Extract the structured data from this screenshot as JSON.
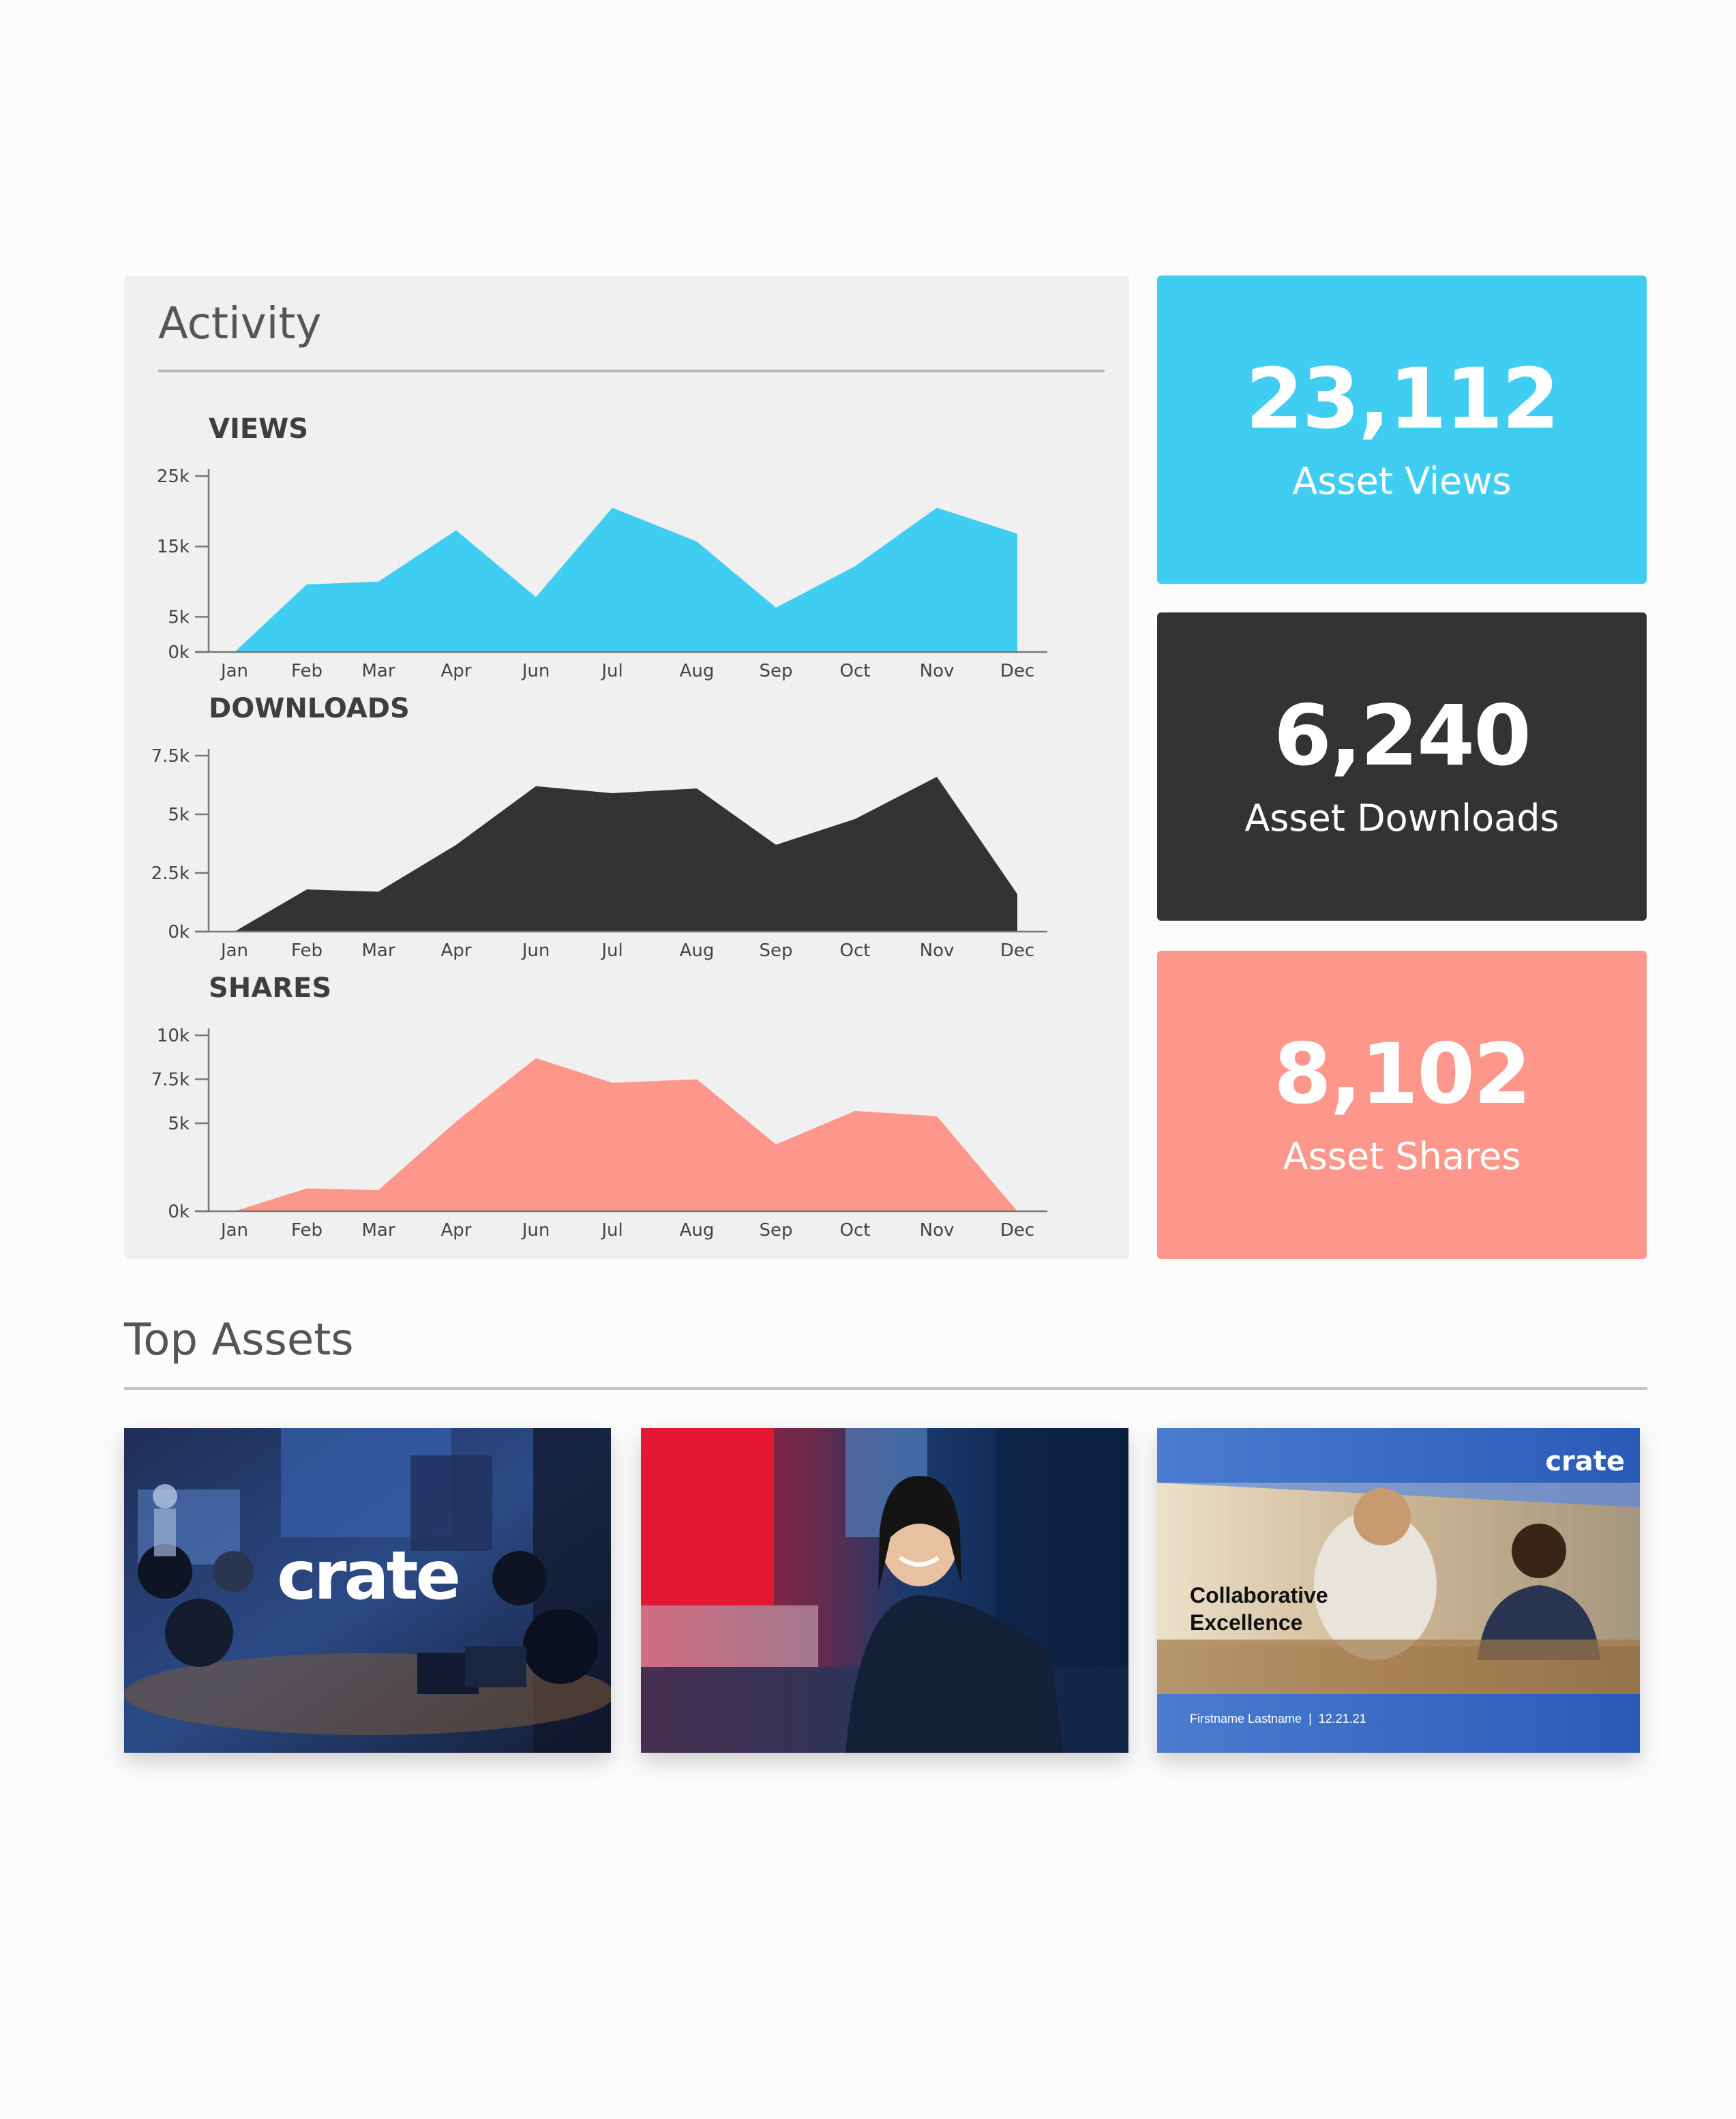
{
  "activity": {
    "title": "Activity",
    "months": [
      "Jan",
      "Feb",
      "Mar",
      "Apr",
      "Jun",
      "Jul",
      "Aug",
      "Sep",
      "Oct",
      "Nov",
      "Dec"
    ]
  },
  "chart_data": [
    {
      "type": "area",
      "title": "VIEWS",
      "categories": [
        "Jan",
        "Feb",
        "Mar",
        "Apr",
        "Jun",
        "Jul",
        "Aug",
        "Sep",
        "Oct",
        "Nov",
        "Dec"
      ],
      "values": [
        0,
        9600,
        10000,
        17300,
        7800,
        20500,
        15700,
        6300,
        12200,
        20500,
        16800
      ],
      "yticks": [
        0,
        5000,
        15000,
        25000
      ],
      "ytick_labels": [
        "0k",
        "5k",
        "15k",
        "25k"
      ],
      "ylim": [
        0,
        25000
      ],
      "color": "#3fcef2"
    },
    {
      "type": "area",
      "title": "DOWNLOADS",
      "categories": [
        "Jan",
        "Feb",
        "Mar",
        "Apr",
        "Jun",
        "Jul",
        "Aug",
        "Sep",
        "Oct",
        "Nov",
        "Dec"
      ],
      "values": [
        0,
        1800,
        1700,
        3700,
        6200,
        5900,
        6100,
        3700,
        4800,
        6600,
        1600
      ],
      "yticks": [
        0,
        2500,
        5000,
        7500
      ],
      "ytick_labels": [
        "0k",
        "2.5k",
        "5k",
        "7.5k"
      ],
      "ylim": [
        0,
        7500
      ],
      "color": "#333333"
    },
    {
      "type": "area",
      "title": "SHARES",
      "categories": [
        "Jan",
        "Feb",
        "Mar",
        "Apr",
        "Jun",
        "Jul",
        "Aug",
        "Sep",
        "Oct",
        "Nov",
        "Dec"
      ],
      "values": [
        0,
        1300,
        1200,
        5100,
        8700,
        7300,
        7500,
        3800,
        5700,
        5400,
        0
      ],
      "yticks": [
        0,
        5000,
        7500,
        10000
      ],
      "ytick_labels": [
        "0k",
        "5k",
        "7.5k",
        "10k"
      ],
      "ylim": [
        0,
        10000
      ],
      "color": "#fd978b"
    }
  ],
  "stats": [
    {
      "value": "23,112",
      "label": "Asset Views",
      "color": "#3fcef2"
    },
    {
      "value": "6,240",
      "label": "Asset Downloads",
      "color": "#333333"
    },
    {
      "value": "8,102",
      "label": "Asset Shares",
      "color": "#fd978b"
    }
  ],
  "top_assets": {
    "title": "Top Assets",
    "items": [
      {
        "logo": "crate",
        "icon": "meeting-room-photo"
      },
      {
        "icon": "smiling-woman-photo"
      },
      {
        "logo": "crate",
        "heading_line1": "Collaborative",
        "heading_line2": "Excellence",
        "footer": "Firstname Lastname  |  12.21.21",
        "icon": "presentation-slide"
      }
    ]
  }
}
